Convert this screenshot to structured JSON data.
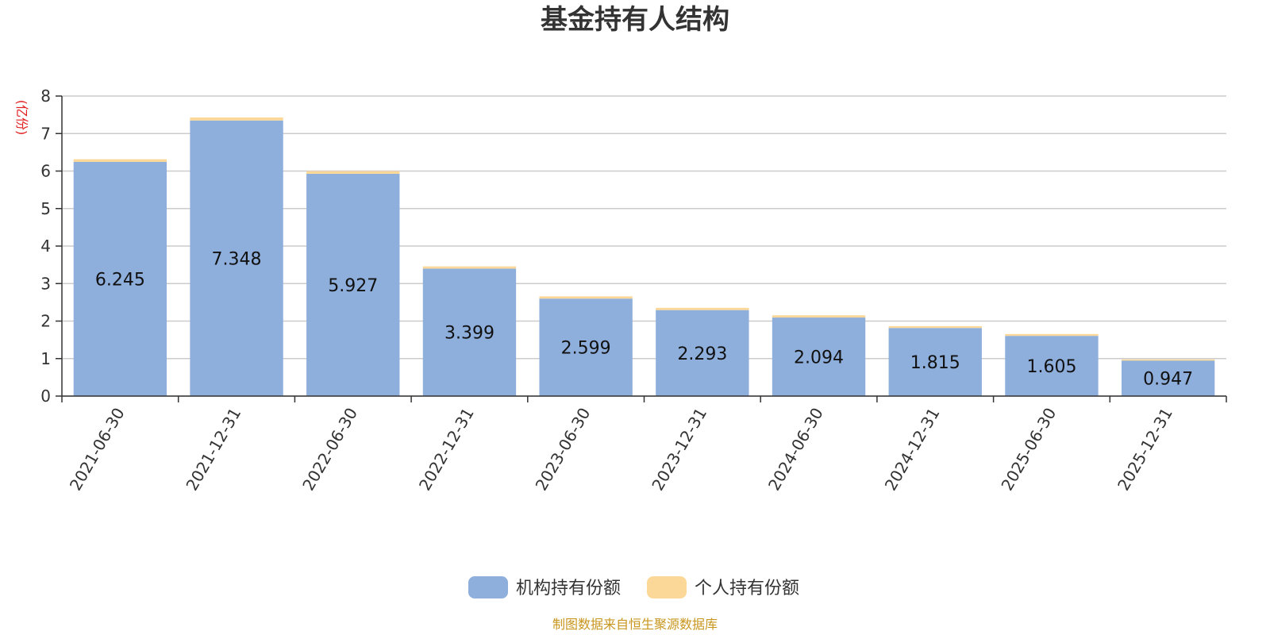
{
  "chart_data": {
    "type": "bar",
    "stacked": true,
    "title": "基金持有人结构",
    "unit_label": "(亿份)",
    "categories": [
      "2021-06-30",
      "2021-12-31",
      "2022-06-30",
      "2022-12-31",
      "2023-06-30",
      "2023-12-31",
      "2024-06-30",
      "2024-12-31",
      "2025-06-30",
      "2025-12-31"
    ],
    "series": [
      {
        "name": "机构持有份额",
        "color": "#8eaedc",
        "values": [
          6.245,
          7.348,
          5.927,
          3.399,
          2.599,
          2.293,
          2.094,
          1.815,
          1.605,
          0.947
        ],
        "labels": [
          "6.245",
          "7.348",
          "5.927",
          "3.399",
          "2.599",
          "2.293",
          "2.094",
          "1.815",
          "1.605",
          "0.947"
        ]
      },
      {
        "name": "个人持有份额",
        "color": "#fcd898",
        "values": [
          0.07,
          0.08,
          0.07,
          0.06,
          0.06,
          0.06,
          0.06,
          0.05,
          0.05,
          0.03
        ]
      }
    ],
    "yticks": [
      "0",
      "1",
      "2",
      "3",
      "4",
      "5",
      "6",
      "7",
      "8"
    ],
    "ylim": [
      0,
      8
    ],
    "grid": true,
    "legend_position": "bottom",
    "source": "制图数据来自恒生聚源数据库"
  }
}
